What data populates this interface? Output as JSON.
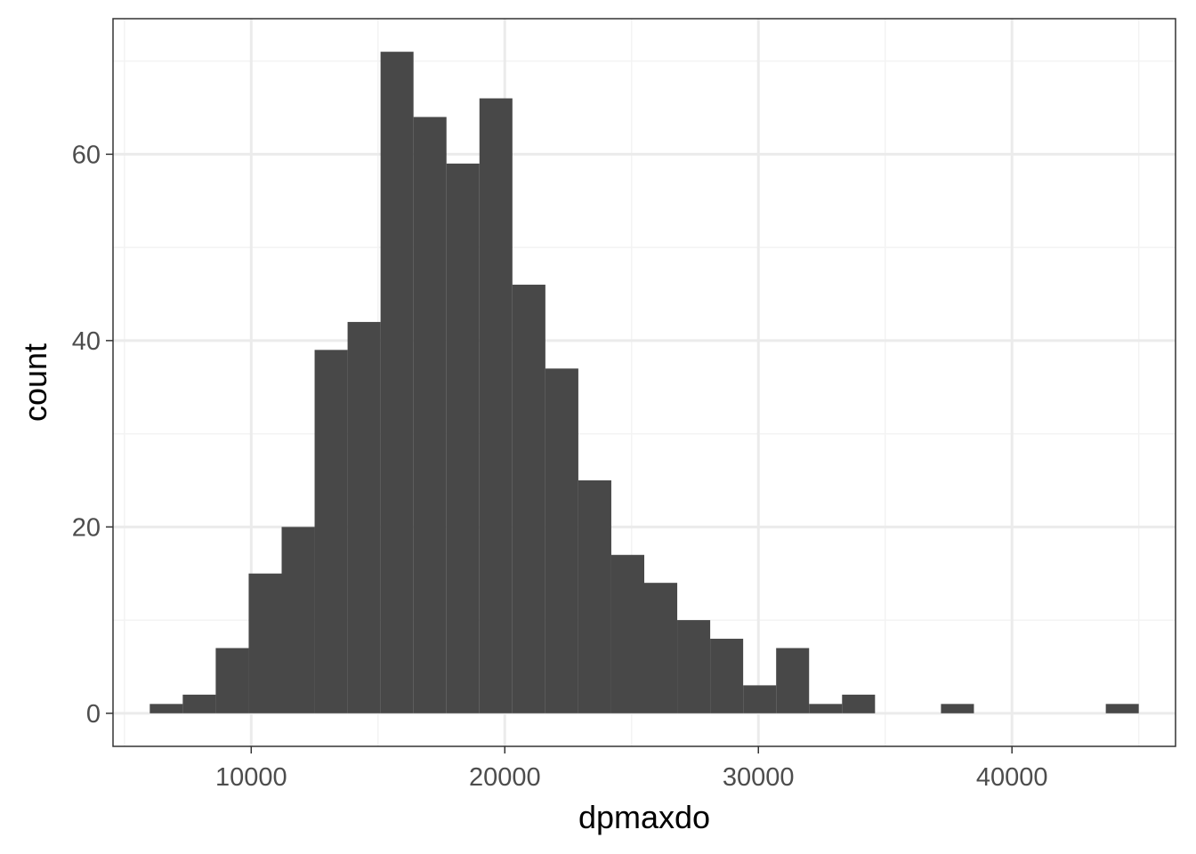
{
  "chart_data": {
    "type": "bar",
    "subtype": "histogram",
    "title": "",
    "xlabel": "dpmaxdo",
    "ylabel": "count",
    "xlim": [
      4550,
      46450
    ],
    "ylim": [
      -3.55,
      74.55
    ],
    "x_ticks": [
      10000,
      20000,
      30000,
      40000
    ],
    "x_tick_labels": [
      "10000",
      "20000",
      "30000",
      "40000"
    ],
    "y_ticks": [
      0,
      20,
      40,
      60
    ],
    "y_tick_labels": [
      "0",
      "20",
      "40",
      "60"
    ],
    "x_minor_ticks": [
      5000,
      15000,
      25000,
      35000,
      45000
    ],
    "y_minor_ticks": [
      10,
      30,
      50,
      70
    ],
    "grid": true,
    "legend": "none",
    "colors": {
      "bar": "#484848",
      "grid_major": "#ebebeb",
      "grid_minor": "#f3f3f3",
      "panel_border": "#333333",
      "tick_label": "#4d4d4d"
    },
    "bins": [
      {
        "x0": 6000,
        "x1": 7300,
        "count": 1
      },
      {
        "x0": 7300,
        "x1": 8600,
        "count": 2
      },
      {
        "x0": 8600,
        "x1": 9900,
        "count": 7
      },
      {
        "x0": 9900,
        "x1": 11200,
        "count": 15
      },
      {
        "x0": 11200,
        "x1": 12500,
        "count": 20
      },
      {
        "x0": 12500,
        "x1": 13800,
        "count": 39
      },
      {
        "x0": 13800,
        "x1": 15100,
        "count": 42
      },
      {
        "x0": 15100,
        "x1": 16400,
        "count": 71
      },
      {
        "x0": 16400,
        "x1": 17700,
        "count": 64
      },
      {
        "x0": 17700,
        "x1": 19000,
        "count": 59
      },
      {
        "x0": 19000,
        "x1": 20300,
        "count": 66
      },
      {
        "x0": 20300,
        "x1": 21600,
        "count": 46
      },
      {
        "x0": 21600,
        "x1": 22900,
        "count": 37
      },
      {
        "x0": 22900,
        "x1": 24200,
        "count": 25
      },
      {
        "x0": 24200,
        "x1": 25500,
        "count": 17
      },
      {
        "x0": 25500,
        "x1": 26800,
        "count": 14
      },
      {
        "x0": 26800,
        "x1": 28100,
        "count": 10
      },
      {
        "x0": 28100,
        "x1": 29400,
        "count": 8
      },
      {
        "x0": 29400,
        "x1": 30700,
        "count": 3
      },
      {
        "x0": 30700,
        "x1": 32000,
        "count": 7
      },
      {
        "x0": 32000,
        "x1": 33300,
        "count": 1
      },
      {
        "x0": 33300,
        "x1": 34600,
        "count": 2
      },
      {
        "x0": 34600,
        "x1": 35900,
        "count": 0
      },
      {
        "x0": 35900,
        "x1": 37200,
        "count": 0
      },
      {
        "x0": 37200,
        "x1": 38500,
        "count": 1
      },
      {
        "x0": 38500,
        "x1": 39800,
        "count": 0
      },
      {
        "x0": 39800,
        "x1": 41100,
        "count": 0
      },
      {
        "x0": 41100,
        "x1": 42400,
        "count": 0
      },
      {
        "x0": 42400,
        "x1": 43700,
        "count": 0
      },
      {
        "x0": 43700,
        "x1": 45000,
        "count": 1
      }
    ]
  }
}
